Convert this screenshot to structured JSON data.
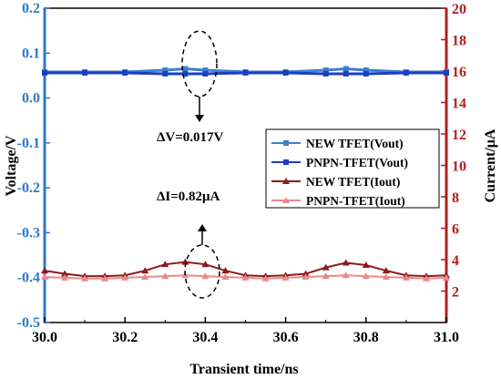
{
  "chart_data": {
    "type": "line",
    "xlabel": "Transient time/ns",
    "ylabel_left": "Voltage/V",
    "ylabel_right": "Current/μA",
    "xlim": [
      30.0,
      31.0
    ],
    "ylim_left": [
      -0.5,
      0.2
    ],
    "ylim_right": [
      0,
      20
    ],
    "x_ticks": [
      "30.0",
      "30.2",
      "30.4",
      "30.6",
      "30.8",
      "31.0"
    ],
    "y_left_ticks": [
      "0.2",
      "0.1",
      "0.0",
      "-0.1",
      "-0.2",
      "-0.3",
      "-0.4",
      "-0.5"
    ],
    "y_right_ticks": [
      "20",
      "18",
      "16",
      "14",
      "12",
      "10",
      "8",
      "6",
      "4",
      "2"
    ],
    "grid": false,
    "legend_position": "right",
    "colors": {
      "left_axis": "#2f79c8",
      "right_axis": "#b11f1f",
      "new_vout": "#3d7fd0",
      "pnpn_vout": "#1b3fc0",
      "new_iout": "#8b1a1a",
      "pnpn_iout": "#e88a8a"
    },
    "series": [
      {
        "name": "NEW TFET(Vout)",
        "axis": "left",
        "marker": "square",
        "x": [
          30.0,
          30.1,
          30.2,
          30.3,
          30.35,
          30.4,
          30.5,
          30.6,
          30.7,
          30.75,
          30.8,
          30.9,
          31.0
        ],
        "values": [
          0.058,
          0.058,
          0.058,
          0.062,
          0.065,
          0.062,
          0.058,
          0.058,
          0.062,
          0.065,
          0.062,
          0.058,
          0.058
        ]
      },
      {
        "name": "PNPN-TFET(Vout)",
        "axis": "left",
        "marker": "square",
        "x": [
          30.0,
          30.1,
          30.2,
          30.3,
          30.35,
          30.4,
          30.5,
          30.6,
          30.7,
          30.75,
          30.8,
          30.9,
          31.0
        ],
        "values": [
          0.056,
          0.056,
          0.056,
          0.054,
          0.054,
          0.054,
          0.056,
          0.056,
          0.054,
          0.054,
          0.054,
          0.056,
          0.056
        ]
      },
      {
        "name": "NEW TFET(Iout)",
        "axis": "right",
        "marker": "triangle",
        "x": [
          30.0,
          30.05,
          30.1,
          30.15,
          30.2,
          30.25,
          30.3,
          30.35,
          30.4,
          30.45,
          30.5,
          30.55,
          30.6,
          30.65,
          30.7,
          30.75,
          30.8,
          30.85,
          30.9,
          30.95,
          31.0
        ],
        "values": [
          3.3,
          3.1,
          2.95,
          2.95,
          3.0,
          3.3,
          3.7,
          3.85,
          3.7,
          3.3,
          3.0,
          2.95,
          3.0,
          3.1,
          3.5,
          3.8,
          3.65,
          3.3,
          3.0,
          2.95,
          3.0
        ]
      },
      {
        "name": "PNPN-TFET(Iout)",
        "axis": "right",
        "marker": "triangle",
        "x": [
          30.0,
          30.05,
          30.1,
          30.15,
          30.2,
          30.25,
          30.3,
          30.35,
          30.4,
          30.45,
          30.5,
          30.55,
          30.6,
          30.65,
          30.7,
          30.75,
          30.8,
          30.85,
          30.9,
          30.95,
          31.0
        ],
        "values": [
          2.9,
          2.85,
          2.8,
          2.8,
          2.85,
          2.9,
          2.95,
          3.0,
          2.95,
          2.9,
          2.85,
          2.8,
          2.85,
          2.9,
          2.95,
          3.0,
          2.95,
          2.9,
          2.85,
          2.8,
          2.85
        ]
      }
    ],
    "annotations": [
      {
        "text": "ΔV=0.017V",
        "x": 30.36,
        "y": 0.06,
        "axis": "left"
      },
      {
        "text": "ΔI=0.82μA",
        "x": 30.36,
        "y": 3.4,
        "axis": "right"
      }
    ]
  }
}
